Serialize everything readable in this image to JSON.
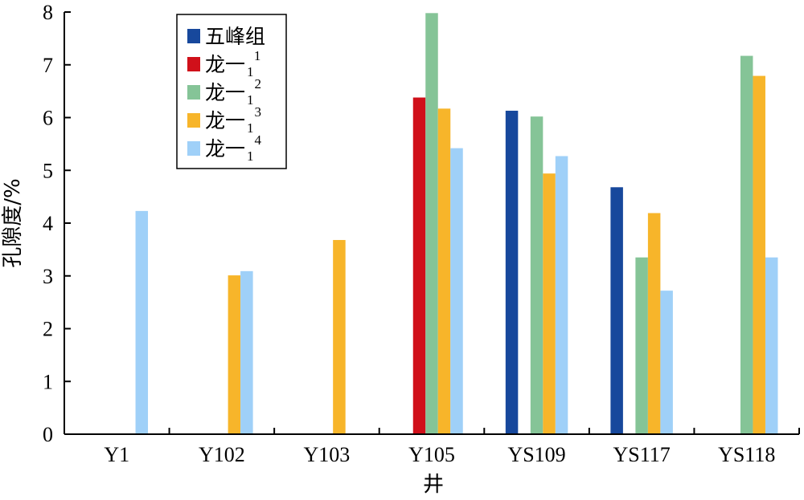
{
  "chart_data": {
    "type": "bar",
    "xlabel": "井",
    "ylabel": "孔隙度/%",
    "ylim": [
      0,
      8
    ],
    "yticks": [
      "0",
      "1",
      "2",
      "3",
      "4",
      "5",
      "6",
      "7",
      "8"
    ],
    "categories": [
      "Y1",
      "Y102",
      "Y103",
      "Y105",
      "YS109",
      "YS117",
      "YS118"
    ],
    "legend_position": "top-left",
    "grid": false,
    "series": [
      {
        "name": "五峰组",
        "name_base": "五峰组",
        "name_sub": "",
        "name_sup": "",
        "color": "#17489c",
        "values": [
          null,
          null,
          null,
          null,
          6.13,
          4.68,
          null
        ]
      },
      {
        "name": "龙一11",
        "name_base": "龙一",
        "name_sub": "1",
        "name_sup": "1",
        "color": "#d0101a",
        "values": [
          null,
          null,
          null,
          6.38,
          null,
          null,
          null
        ]
      },
      {
        "name": "龙一12",
        "name_base": "龙一",
        "name_sub": "1",
        "name_sup": "2",
        "color": "#85c497",
        "values": [
          null,
          null,
          null,
          7.98,
          6.02,
          3.35,
          7.17
        ]
      },
      {
        "name": "龙一13",
        "name_base": "龙一",
        "name_sub": "1",
        "name_sup": "3",
        "color": "#f7b52a",
        "values": [
          null,
          3.01,
          3.68,
          6.17,
          4.94,
          4.19,
          6.79
        ]
      },
      {
        "name": "龙一14",
        "name_base": "龙一",
        "name_sub": "1",
        "name_sup": "4",
        "color": "#9fd0f8",
        "values": [
          4.23,
          3.09,
          null,
          5.42,
          5.27,
          2.72,
          3.35
        ]
      }
    ]
  }
}
